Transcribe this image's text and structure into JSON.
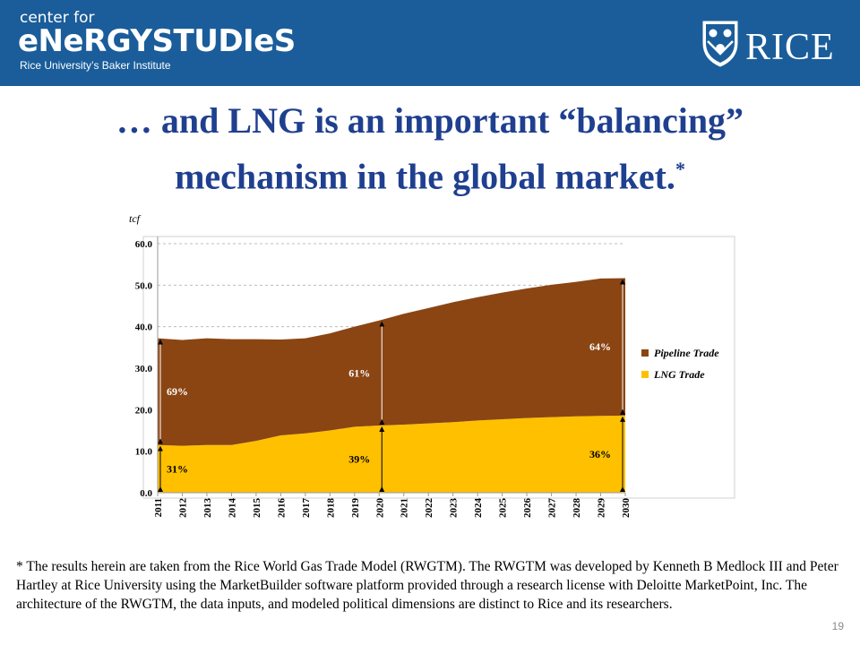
{
  "header": {
    "org_line1": "center for",
    "org_line2": "eNeRGYSTUDIeS",
    "org_line3": "Rice University’s Baker Institute",
    "logo_text": "RICE",
    "logo_icon": "shield-owls-icon",
    "banner_color": "#1a5d9a"
  },
  "slide": {
    "title_line1": "… and LNG is an important “balancing”",
    "title_line2": "mechanism in the global market.",
    "title_mark": "*",
    "title_color": "#1f3f8f",
    "footnote": "* The results herein are taken from the Rice World Gas Trade Model (RWGTM).  The RWGTM was developed by Kenneth B Medlock III and Peter Hartley at Rice University using the MarketBuilder software platform provided through a research license with Deloitte MarketPoint, Inc. The architecture of the RWGTM, the data inputs, and modeled political dimensions are distinct to Rice and its researchers.",
    "page_number": "19"
  },
  "chart_data": {
    "type": "area",
    "stacked": true,
    "unit_label": "tcf",
    "x": [
      "2011",
      "2012",
      "2013",
      "2014",
      "2015",
      "2016",
      "2017",
      "2018",
      "2019",
      "2020",
      "2021",
      "2022",
      "2023",
      "2024",
      "2025",
      "2026",
      "2027",
      "2028",
      "2029",
      "2030"
    ],
    "series": [
      {
        "name": "LNG Trade",
        "color": "#ffc000",
        "values": [
          11.5,
          11.3,
          11.5,
          11.5,
          12.5,
          13.8,
          14.3,
          15.0,
          15.9,
          16.2,
          16.4,
          16.7,
          17.0,
          17.4,
          17.7,
          18.0,
          18.2,
          18.4,
          18.5,
          18.6
        ]
      },
      {
        "name": "Pipeline Trade",
        "color": "#8b4513",
        "values": [
          25.7,
          25.5,
          25.7,
          25.5,
          24.5,
          23.1,
          22.9,
          23.4,
          24.1,
          25.3,
          26.7,
          27.8,
          28.9,
          29.7,
          30.5,
          31.2,
          31.9,
          32.4,
          33.1,
          33.1
        ]
      }
    ],
    "yticks": [
      "0.0",
      "10.0",
      "20.0",
      "30.0",
      "40.0",
      "50.0",
      "60.0"
    ],
    "ylim": [
      0,
      60
    ],
    "grid": true,
    "legend_position": "right",
    "annotations": [
      {
        "year": "2011",
        "pipeline_pct": "69%",
        "lng_pct": "31%"
      },
      {
        "year": "2020",
        "pipeline_pct": "61%",
        "lng_pct": "39%"
      },
      {
        "year": "2030",
        "pipeline_pct": "64%",
        "lng_pct": "36%"
      }
    ]
  }
}
